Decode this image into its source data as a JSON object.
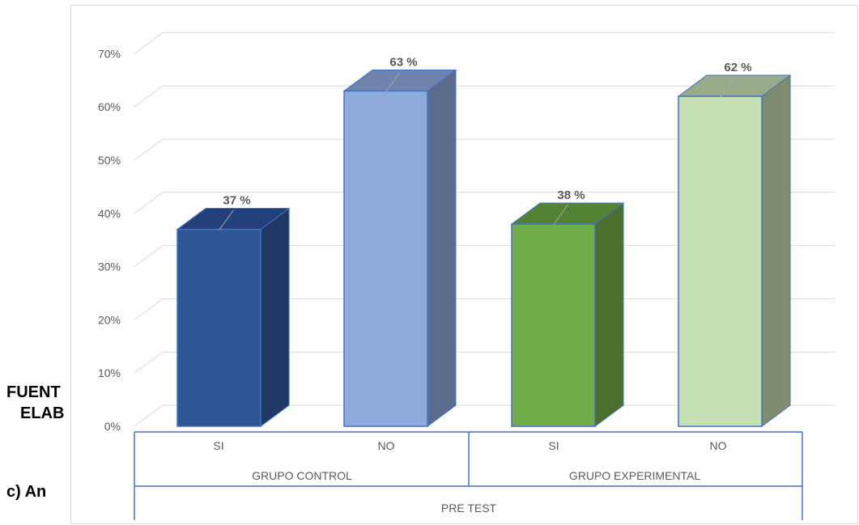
{
  "document": {
    "fuente_fragment": "FUENT",
    "elab_fragment": "ELAB",
    "section_fragment": "c) An"
  },
  "chart_data": {
    "type": "bar",
    "title": "",
    "xlabel": "",
    "ylabel": "",
    "ylim": [
      0,
      70
    ],
    "yticks": [
      "0%",
      "10%",
      "20%",
      "30%",
      "40%",
      "50%",
      "60%",
      "70%"
    ],
    "grid": true,
    "categories": [
      "SI",
      "NO",
      "SI",
      "NO"
    ],
    "groups": [
      {
        "label": "GRUPO CONTROL",
        "categories": [
          "SI",
          "NO"
        ]
      },
      {
        "label": "GRUPO EXPERIMENTAL",
        "categories": [
          "SI",
          "NO"
        ]
      }
    ],
    "outer_group": "PRE TEST",
    "values": [
      37,
      63,
      38,
      62
    ],
    "data_labels": [
      "37 %",
      "63 %",
      "38 %",
      "62 %"
    ],
    "colors": {
      "bar_fronts": [
        "#2f5597",
        "#8faadc",
        "#70ad47",
        "#c5e0b4"
      ],
      "bar_sides": [
        "#1f3864",
        "#5b6b8c",
        "#4a6f2e",
        "#7e8c70"
      ],
      "bar_tops": [
        "#24407a",
        "#6f84ac",
        "#548235",
        "#97ab88"
      ],
      "bar_outline": "#4472c4",
      "gridline": "#d9d9d9",
      "axis": "#4472c4",
      "text": "#595959"
    }
  }
}
